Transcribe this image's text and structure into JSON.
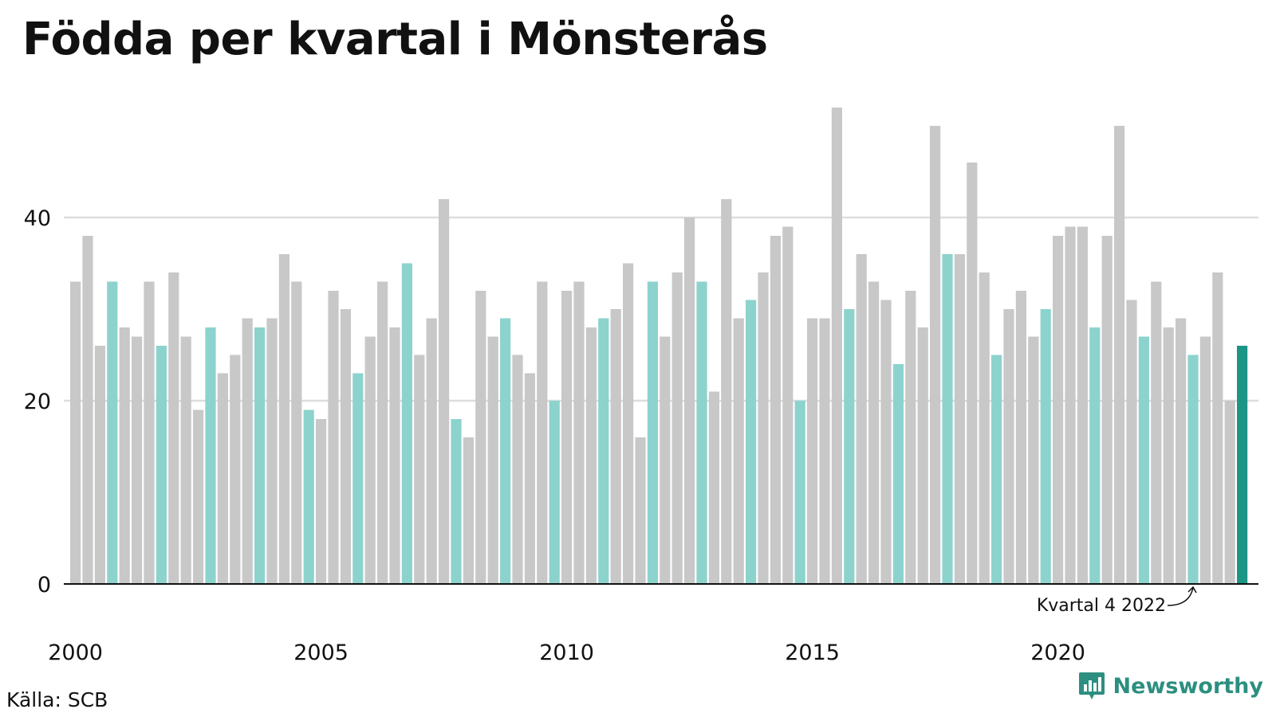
{
  "title": "Födda per kvartal i Mönsterås",
  "source": "Källa: SCB",
  "brand": "Newsworthy",
  "colors": {
    "bar_default": "#c8c8c8",
    "bar_quarter4": "#8dd3cd",
    "bar_latest": "#1b9586",
    "brand": "#2c8f80",
    "grid": "#dddddd",
    "axis": "#111111"
  },
  "chart_data": {
    "type": "bar",
    "title": "Födda per kvartal i Mönsterås",
    "xlabel": "",
    "ylabel": "",
    "ylim": [
      0,
      52
    ],
    "yticks": [
      0,
      20,
      40
    ],
    "xtick_labels": [
      "2000",
      "2005",
      "2010",
      "2015",
      "2020"
    ],
    "grid": "horizontal",
    "categories": [
      "2000 K1",
      "2000 K2",
      "2000 K3",
      "2000 K4",
      "2001 K1",
      "2001 K2",
      "2001 K3",
      "2001 K4",
      "2002 K1",
      "2002 K2",
      "2002 K3",
      "2002 K4",
      "2003 K1",
      "2003 K2",
      "2003 K3",
      "2003 K4",
      "2004 K1",
      "2004 K2",
      "2004 K3",
      "2004 K4",
      "2005 K1",
      "2005 K2",
      "2005 K3",
      "2005 K4",
      "2006 K1",
      "2006 K2",
      "2006 K3",
      "2006 K4",
      "2007 K1",
      "2007 K2",
      "2007 K3",
      "2007 K4",
      "2008 K1",
      "2008 K2",
      "2008 K3",
      "2008 K4",
      "2009 K1",
      "2009 K2",
      "2009 K3",
      "2009 K4",
      "2010 K1",
      "2010 K2",
      "2010 K3",
      "2010 K4",
      "2011 K1",
      "2011 K2",
      "2011 K3",
      "2011 K4",
      "2012 K1",
      "2012 K2",
      "2012 K3",
      "2012 K4",
      "2013 K1",
      "2013 K2",
      "2013 K3",
      "2013 K4",
      "2014 K1",
      "2014 K2",
      "2014 K3",
      "2014 K4",
      "2015 K1",
      "2015 K2",
      "2015 K3",
      "2015 K4",
      "2016 K1",
      "2016 K2",
      "2016 K3",
      "2016 K4",
      "2017 K1",
      "2017 K2",
      "2017 K3",
      "2017 K4",
      "2018 K1",
      "2018 K2",
      "2018 K3",
      "2018 K4",
      "2019 K1",
      "2019 K2",
      "2019 K3",
      "2019 K4",
      "2020 K1",
      "2020 K2",
      "2020 K3",
      "2020 K4",
      "2021 K1",
      "2021 K2",
      "2021 K3",
      "2021 K4",
      "2022 K1",
      "2022 K2",
      "2022 K3",
      "2022 K4",
      "2023 K1",
      "2023 K2",
      "2023 K3",
      "2023 K4"
    ],
    "values": [
      33,
      38,
      26,
      33,
      28,
      27,
      33,
      26,
      34,
      27,
      19,
      28,
      23,
      25,
      29,
      28,
      29,
      36,
      33,
      19,
      18,
      32,
      30,
      23,
      27,
      33,
      28,
      35,
      25,
      29,
      42,
      18,
      16,
      32,
      27,
      29,
      25,
      23,
      33,
      20,
      32,
      33,
      28,
      29,
      30,
      35,
      16,
      33,
      27,
      34,
      40,
      33,
      21,
      42,
      29,
      31,
      34,
      38,
      39,
      20,
      29,
      29,
      52,
      30,
      36,
      33,
      31,
      24,
      32,
      28,
      50,
      36,
      36,
      46,
      34,
      25,
      30,
      32,
      27,
      30,
      38,
      39,
      39,
      28,
      38,
      50,
      31,
      27,
      33,
      28,
      29,
      25,
      27,
      34,
      20,
      26
    ],
    "highlight": "Fjärde kvartalet varje år är markerat; sista stapeln är senaste kvartalet.",
    "annotation": {
      "text": "Kvartal 4 2022",
      "target_category": "2022 K4"
    }
  }
}
